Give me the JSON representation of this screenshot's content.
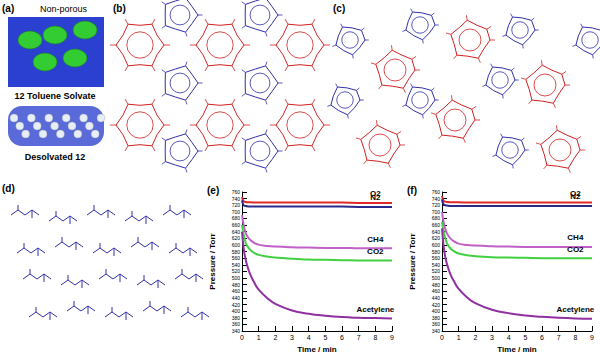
{
  "panel_labels": [
    "(a)",
    "(b)",
    "(c)",
    "(d)",
    "(e)",
    "(f)"
  ],
  "panel_a": {
    "texts": [
      "Non-porous",
      "12 Toluene Solvate",
      "Desolvated 12"
    ]
  },
  "chart_data": [
    {
      "type": "line",
      "x_label": "Time / min",
      "y_label": "Pressure / Torr",
      "xlim": [
        0,
        9
      ],
      "xticks": [
        0,
        1,
        2,
        3,
        4,
        5,
        6,
        7,
        8,
        9
      ],
      "ylim": [
        340,
        760
      ],
      "yticks": [
        340,
        360,
        380,
        400,
        420,
        440,
        460,
        480,
        500,
        520,
        540,
        560,
        580,
        600,
        620,
        640,
        660,
        680,
        700,
        720,
        740,
        760
      ],
      "x": [
        0,
        0.1,
        0.2,
        0.3,
        0.5,
        0.75,
        1,
        1.5,
        2,
        3,
        4,
        5,
        6,
        7,
        8,
        9
      ],
      "series": [
        {
          "name": "O2",
          "color": "#e02828",
          "values": [
            745,
            732,
            730,
            729,
            729,
            728,
            728,
            728,
            728,
            728,
            728,
            728,
            728,
            727,
            727,
            727
          ]
        },
        {
          "name": "N2",
          "color": "#2a2a8c",
          "values": [
            735,
            720,
            718,
            717,
            716,
            716,
            716,
            716,
            716,
            716,
            716,
            716,
            716,
            715,
            715,
            715
          ]
        },
        {
          "name": "CH4",
          "color": "#c060c8",
          "values": [
            690,
            660,
            640,
            628,
            615,
            606,
            601,
            597,
            595,
            593,
            592,
            591,
            591,
            590,
            590,
            590
          ]
        },
        {
          "name": "CO2",
          "color": "#40d040",
          "values": [
            660,
            630,
            610,
            598,
            585,
            575,
            570,
            565,
            562,
            558,
            556,
            555,
            554,
            553,
            553,
            553
          ]
        },
        {
          "name": "Acetylene",
          "color": "#9030a0",
          "values": [
            640,
            590,
            560,
            540,
            510,
            485,
            465,
            440,
            422,
            402,
            392,
            386,
            382,
            380,
            379,
            378
          ]
        }
      ]
    },
    {
      "type": "line",
      "x_label": "Time / min",
      "y_label": "Pressure / Torr",
      "xlim": [
        0,
        9
      ],
      "xticks": [
        0,
        1,
        2,
        3,
        4,
        5,
        6,
        7,
        8,
        9
      ],
      "ylim": [
        340,
        760
      ],
      "yticks": [
        340,
        360,
        380,
        400,
        420,
        440,
        460,
        480,
        500,
        520,
        540,
        560,
        580,
        600,
        620,
        640,
        660,
        680,
        700,
        720,
        740,
        760
      ],
      "x": [
        0,
        0.1,
        0.2,
        0.3,
        0.5,
        0.75,
        1,
        1.5,
        2,
        3,
        4,
        5,
        6,
        7,
        8,
        9
      ],
      "series": [
        {
          "name": "O2",
          "color": "#e02828",
          "values": [
            748,
            733,
            731,
            730,
            729,
            729,
            729,
            728,
            728,
            728,
            728,
            728,
            728,
            728,
            728,
            728
          ]
        },
        {
          "name": "N2",
          "color": "#2a2a8c",
          "values": [
            738,
            722,
            720,
            719,
            718,
            718,
            718,
            718,
            718,
            718,
            718,
            718,
            718,
            718,
            718,
            718
          ]
        },
        {
          "name": "CH4",
          "color": "#c060c8",
          "values": [
            700,
            668,
            648,
            635,
            620,
            610,
            604,
            600,
            598,
            596,
            595,
            594,
            594,
            594,
            594,
            594
          ]
        },
        {
          "name": "CO2",
          "color": "#40d040",
          "values": [
            670,
            640,
            620,
            605,
            590,
            580,
            574,
            569,
            566,
            563,
            562,
            561,
            560,
            560,
            560,
            560
          ]
        },
        {
          "name": "Acetylene",
          "color": "#9030a0",
          "values": [
            650,
            595,
            563,
            542,
            512,
            487,
            467,
            442,
            424,
            404,
            394,
            387,
            383,
            380,
            378,
            377
          ]
        }
      ]
    }
  ]
}
